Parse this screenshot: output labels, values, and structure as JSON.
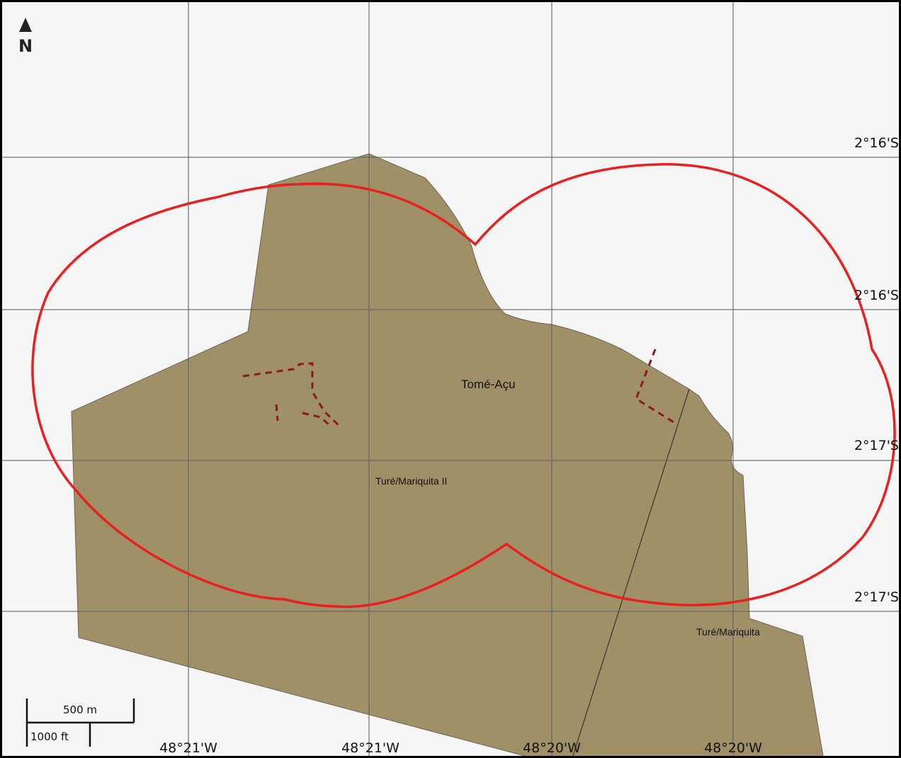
{
  "map": {
    "north_arrow": {
      "label": "N"
    },
    "longitude_labels": [
      "48°21'W",
      "48°21'W",
      "48°20'W",
      "48°20'W"
    ],
    "latitude_labels": [
      "2°16'S",
      "2°16'S",
      "2°17'S",
      "2°17'S"
    ],
    "place_labels": {
      "tome_acu": "Tomé-Açu",
      "ture_mariquita_ii": "Turé/Mariquita II",
      "ture_mariquita": "Turé/Mariquita"
    },
    "scale_bar": {
      "metric": "500 m",
      "imperial": "1000 ft"
    },
    "colors": {
      "background": "#f5f5f5",
      "territory_fill": "#a09068",
      "buffer_outline": "#e82020",
      "dashed_lines": "#8b1a1a",
      "graticule": "#8a8a8a"
    }
  }
}
